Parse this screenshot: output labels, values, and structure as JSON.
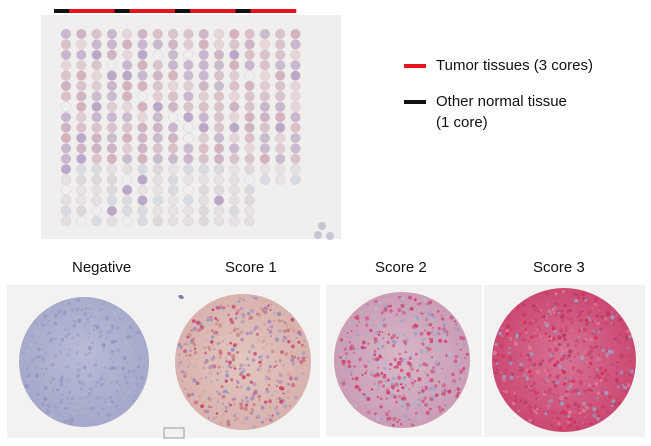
{
  "legend": {
    "tumor": {
      "label": "Tumor tissues (3 cores)",
      "color": "#e8141b"
    },
    "normal": {
      "label_line1": "Other normal tissue",
      "label_line2": "(1 core)",
      "color": "#111111"
    }
  },
  "panels": [
    {
      "label": "Negative"
    },
    {
      "label": "Score 1"
    },
    {
      "label": "Score 2"
    },
    {
      "label": "Score 3"
    }
  ],
  "colors": {
    "slide_bg": "#f1efee",
    "panel_bg": "#f3f2f1",
    "stain_pink": "#c8466e",
    "counterstain_blue": "#8f95c2"
  }
}
